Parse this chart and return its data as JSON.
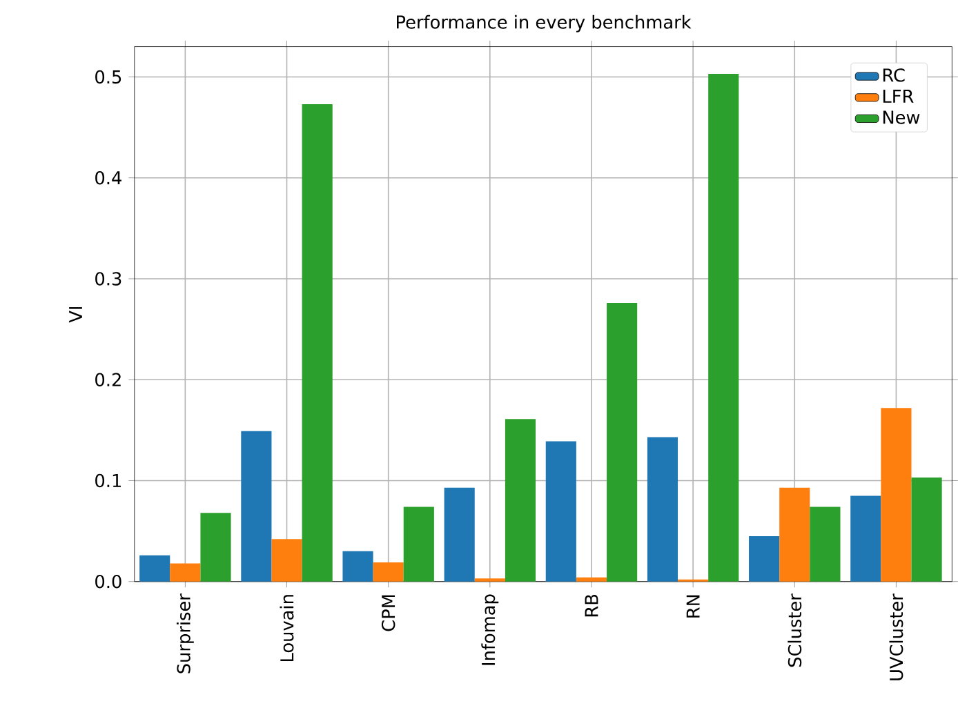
{
  "chart_data": {
    "type": "bar",
    "title": "Performance in every benchmark",
    "ylabel": "VI",
    "categories": [
      "Surpriser",
      "Louvain",
      "CPM",
      "Infomap",
      "RB",
      "RN",
      "SCluster",
      "UVCluster"
    ],
    "series": [
      {
        "name": "RC",
        "color": "#1f77b4",
        "values": [
          0.026,
          0.149,
          0.03,
          0.093,
          0.139,
          0.143,
          0.045,
          0.085
        ]
      },
      {
        "name": "LFR",
        "color": "#ff7f0e",
        "values": [
          0.018,
          0.042,
          0.019,
          0.003,
          0.004,
          0.002,
          0.093,
          0.172
        ]
      },
      {
        "name": "New",
        "color": "#2ca02c",
        "values": [
          0.068,
          0.473,
          0.074,
          0.161,
          0.276,
          0.503,
          0.074,
          0.103
        ]
      }
    ],
    "ylim": [
      0,
      0.53
    ],
    "yticks": [
      {
        "value": 0,
        "label": "0.0"
      },
      {
        "value": 0.1,
        "label": "0.1"
      },
      {
        "value": 0.2,
        "label": "0.2"
      },
      {
        "value": 0.3,
        "label": "0.3"
      },
      {
        "value": 0.4,
        "label": "0.4"
      },
      {
        "value": 0.5,
        "label": "0.5"
      }
    ],
    "grid": true,
    "legend": "top right"
  }
}
